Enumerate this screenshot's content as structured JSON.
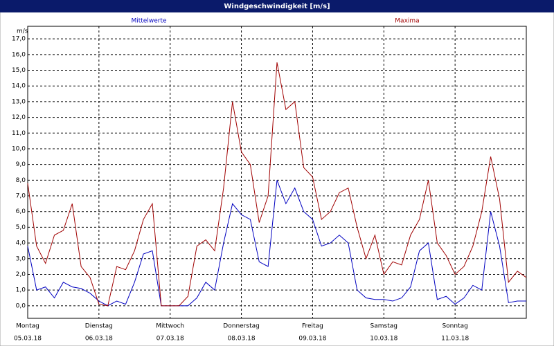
{
  "chart_data": {
    "type": "line",
    "title": "Windgeschwindigkeit [m/s]",
    "y_label": "m/s",
    "x": [
      0,
      3,
      6,
      9,
      12,
      15,
      18,
      21,
      24,
      27,
      30,
      33,
      36,
      39,
      42,
      45,
      48,
      51,
      54,
      57,
      60,
      63,
      66,
      69,
      72,
      75,
      78,
      81,
      84,
      87,
      90,
      93,
      96,
      99,
      102,
      105,
      108,
      111,
      114,
      117,
      120,
      123,
      126,
      129,
      132,
      135,
      138,
      141,
      144,
      147,
      150,
      153,
      156,
      159,
      162,
      165,
      168
    ],
    "series": [
      {
        "name": "Mittelwerte",
        "color": "#0000c0",
        "values": [
          3.8,
          1.0,
          1.2,
          0.5,
          1.5,
          1.2,
          1.1,
          0.8,
          0.3,
          0,
          0.3,
          0.1,
          1.5,
          3.3,
          3.5,
          0,
          0,
          0,
          0,
          0.5,
          1.5,
          1.0,
          4.0,
          6.5,
          5.8,
          5.5,
          2.8,
          2.5,
          8.0,
          6.5,
          7.5,
          6.0,
          5.5,
          3.8,
          4.0,
          4.5,
          4.0,
          1.0,
          0.5,
          0.4,
          0.4,
          0.3,
          0.5,
          1.2,
          3.5,
          4.0,
          0.4,
          0.6,
          0.1,
          0.5,
          1.3,
          1.0,
          6.0,
          3.8,
          0.2,
          0.3,
          0.3
        ]
      },
      {
        "name": "Maxima",
        "color": "#a00000",
        "values": [
          7.8,
          3.8,
          2.7,
          4.5,
          4.8,
          6.5,
          2.5,
          1.8,
          0.1,
          0,
          2.5,
          2.3,
          3.5,
          5.5,
          6.5,
          0,
          0,
          0,
          0.6,
          3.8,
          4.2,
          3.5,
          7.5,
          13.0,
          9.8,
          9.0,
          5.3,
          7.0,
          15.5,
          12.5,
          13.0,
          8.8,
          8.2,
          5.5,
          6.0,
          7.2,
          7.5,
          5.0,
          3.0,
          4.5,
          2.0,
          2.8,
          2.6,
          4.5,
          5.5,
          8.0,
          4.0,
          3.2,
          2.0,
          2.5,
          3.8,
          6.0,
          9.5,
          6.8,
          1.5,
          2.2,
          1.8
        ]
      }
    ],
    "xlim": [
      0,
      168
    ],
    "xticks": [
      {
        "value": 0,
        "label": "Montag"
      },
      {
        "value": 24,
        "label": "Dienstag"
      },
      {
        "value": 48,
        "label": "Mittwoch"
      },
      {
        "value": 72,
        "label": "Donnerstag"
      },
      {
        "value": 96,
        "label": "Freitag"
      },
      {
        "value": 120,
        "label": "Samstag"
      },
      {
        "value": 144,
        "label": "Sonntag"
      }
    ],
    "xtick_dates": [
      "05.03.18",
      "06.03.18",
      "07.03.18",
      "08.03.18",
      "09.03.18",
      "10.03.18",
      "11.03.18"
    ],
    "ylim": [
      -0.8,
      17.8
    ],
    "yticks": [
      {
        "value": 0,
        "label": "0,0"
      },
      {
        "value": 1,
        "label": "1,0"
      },
      {
        "value": 2,
        "label": "2,0"
      },
      {
        "value": 3,
        "label": "3,0"
      },
      {
        "value": 4,
        "label": "4,0"
      },
      {
        "value": 5,
        "label": "5,0"
      },
      {
        "value": 6,
        "label": "6,0"
      },
      {
        "value": 7,
        "label": "7,0"
      },
      {
        "value": 8,
        "label": "8,0"
      },
      {
        "value": 9,
        "label": "9,0"
      },
      {
        "value": 10,
        "label": "10,0"
      },
      {
        "value": 11,
        "label": "11,0"
      },
      {
        "value": 12,
        "label": "12,0"
      },
      {
        "value": 13,
        "label": "13,0"
      },
      {
        "value": 14,
        "label": "14,0"
      },
      {
        "value": 15,
        "label": "15,0"
      },
      {
        "value": 16,
        "label": "16,0"
      },
      {
        "value": 17,
        "label": "17,0"
      }
    ],
    "grid": true
  }
}
